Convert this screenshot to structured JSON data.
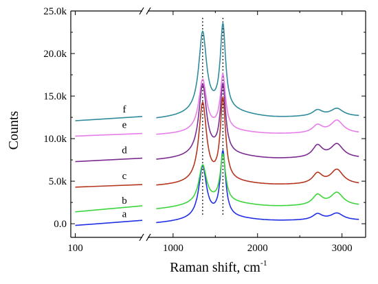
{
  "chart_data": {
    "type": "line",
    "title": "",
    "xlabel": "Raman shift, cm",
    "xlabel_sup": "-1",
    "ylabel": "Counts",
    "x_axis": "broken",
    "x_segments": [
      {
        "range": [
          60,
          700
        ],
        "ticks": [
          {
            "value": 100,
            "label": "100"
          }
        ]
      },
      {
        "range": [
          700,
          3280
        ],
        "ticks": [
          {
            "value": 1000,
            "label": "1000"
          },
          {
            "value": 2000,
            "label": "2000"
          },
          {
            "value": 3000,
            "label": "3000"
          }
        ]
      }
    ],
    "ylim": [
      -1600,
      25000
    ],
    "y_ticks": [
      {
        "value": 0,
        "label": "0.0"
      },
      {
        "value": 5000,
        "label": "5.0k"
      },
      {
        "value": 10000,
        "label": "10.0k"
      },
      {
        "value": 15000,
        "label": "15.0k"
      },
      {
        "value": 20000,
        "label": "20.0k"
      },
      {
        "value": 25000,
        "label": "25.0k"
      }
    ],
    "grid": false,
    "reference_lines": [
      1350,
      1590
    ],
    "series": [
      {
        "name": "a",
        "color": "#1f2ee6",
        "offset": 0,
        "d_peak": 6000,
        "g_peak": 7600,
        "baseline_low": -200,
        "baseline_high": 400,
        "bg": 300,
        "peak_2d_1": 700,
        "peak_2d_2": 800
      },
      {
        "name": "b",
        "color": "#3bd53b",
        "offset": 1500,
        "d_peak": 4400,
        "g_peak": 5500,
        "baseline_low": 1400,
        "baseline_high": 2100,
        "bg": 400,
        "peak_2d_1": 1200,
        "peak_2d_2": 1500
      },
      {
        "name": "c",
        "color": "#b5341e",
        "offset": 4400,
        "d_peak": 9200,
        "g_peak": 9500,
        "baseline_low": 4300,
        "baseline_high": 4600,
        "bg": 300,
        "peak_2d_1": 1200,
        "peak_2d_2": 1700
      },
      {
        "name": "d",
        "color": "#7b2b8f",
        "offset": 7400,
        "d_peak": 8200,
        "g_peak": 8000,
        "baseline_low": 7300,
        "baseline_high": 7700,
        "bg": 400,
        "peak_2d_1": 1400,
        "peak_2d_2": 1600
      },
      {
        "name": "e",
        "color": "#e77de8",
        "offset": 10300,
        "d_peak": 6000,
        "g_peak": 6400,
        "baseline_low": 10300,
        "baseline_high": 10600,
        "bg": 300,
        "peak_2d_1": 900,
        "peak_2d_2": 1500
      },
      {
        "name": "f",
        "color": "#2f8a9c",
        "offset": 12200,
        "d_peak": 9300,
        "g_peak": 9900,
        "baseline_low": 12100,
        "baseline_high": 12600,
        "bg": 600,
        "peak_2d_1": 700,
        "peak_2d_2": 900
      }
    ]
  }
}
